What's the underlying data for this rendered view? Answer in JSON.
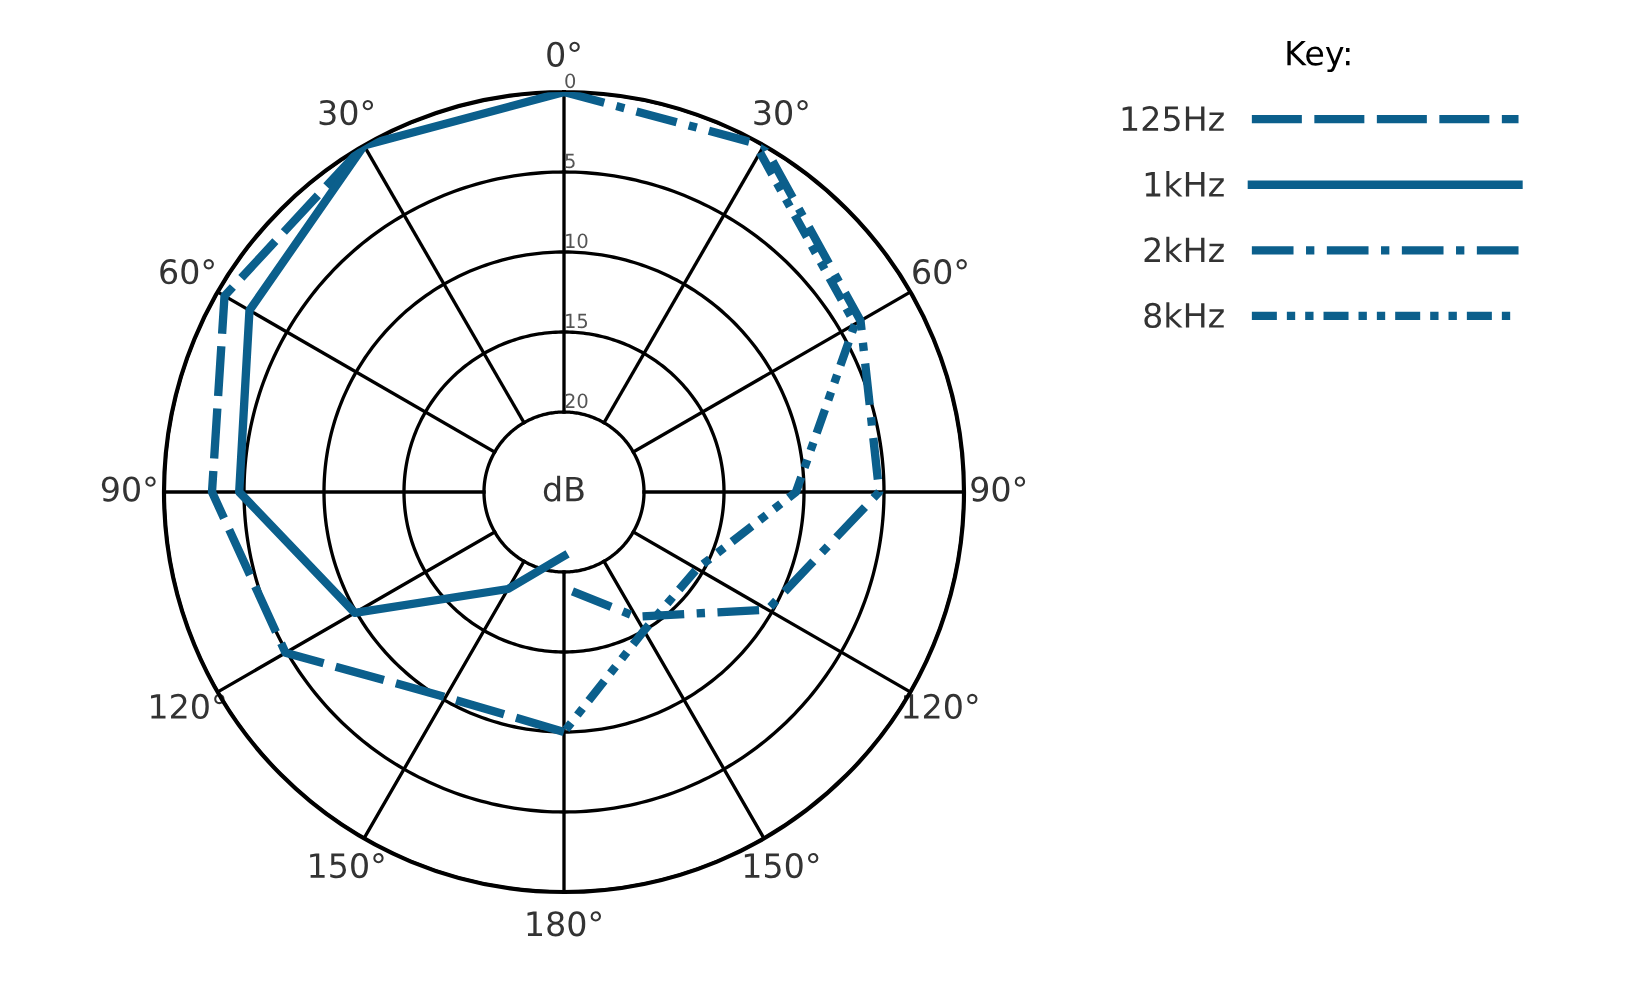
{
  "chart_data": {
    "type": "radar",
    "ylabel": "dB",
    "legend_title": "Key:",
    "legend": "top right",
    "grid": true,
    "categories": [
      "0°",
      "30°",
      "60°",
      "90°",
      "120°",
      "150°",
      "180°",
      "150°",
      "120°",
      "90°",
      "60°",
      "30°"
    ],
    "ylim": [
      25,
      0
    ],
    "yticks": [
      0,
      5,
      10,
      15,
      20
    ],
    "series": [
      {
        "name": "125Hz",
        "color": "#0b5f8c",
        "line_style": "dashed",
        "values": [
          null,
          null,
          null,
          null,
          null,
          null,
          10,
          10.2,
          4.9,
          3,
          0.5,
          0
        ]
      },
      {
        "name": "1kHz",
        "color": "#0b5f8c",
        "line_style": "solid",
        "values": [
          0,
          null,
          null,
          null,
          null,
          null,
          21,
          18,
          9.9,
          4.7,
          2.3,
          0
        ]
      },
      {
        "name": "2kHz",
        "color": "#0b5f8c",
        "line_style": "dashdot",
        "values": [
          0,
          0,
          3.6,
          5.3,
          10.3,
          16,
          19,
          null,
          null,
          null,
          null,
          null
        ]
      },
      {
        "name": "8kHz",
        "color": "#0b5f8c",
        "line_style": "dashdotdot",
        "values": [
          null,
          0.5,
          4,
          10.5,
          15.4,
          15,
          10,
          null,
          null,
          null,
          null,
          null
        ]
      }
    ]
  }
}
